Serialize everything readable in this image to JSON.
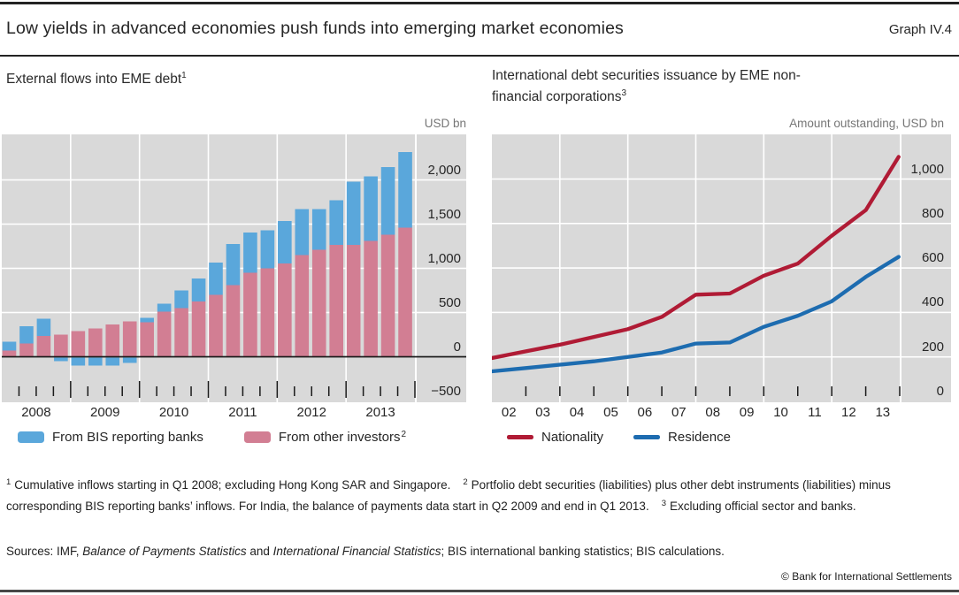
{
  "header": {
    "title": "Low yields in advanced economies push funds into emerging market economies",
    "graph_label": "Graph IV.4"
  },
  "colors": {
    "panel_background": "#d9d9d9",
    "gridline": "#ffffff",
    "zero_line": "#1a1a1a",
    "tick": "#1a1a1a",
    "bar_blue": "#5aa7db",
    "bar_pink": "#d27e93",
    "line_red": "#b01b35",
    "line_blue": "#1d6cb0"
  },
  "chart_data": [
    {
      "type": "bar",
      "stacked": true,
      "title": "External flows into EME debt",
      "title_footnote": "1",
      "unit_label": "USD bn",
      "categories": [
        "2008 Q1",
        "2008 Q2",
        "2008 Q3",
        "2008 Q4",
        "2009 Q1",
        "2009 Q2",
        "2009 Q3",
        "2009 Q4",
        "2010 Q1",
        "2010 Q2",
        "2010 Q3",
        "2010 Q4",
        "2011 Q1",
        "2011 Q2",
        "2011 Q3",
        "2011 Q4",
        "2012 Q1",
        "2012 Q2",
        "2012 Q3",
        "2012 Q4",
        "2013 Q1",
        "2013 Q2",
        "2013 Q3",
        "2013 Q4"
      ],
      "x_year_labels": [
        "2008",
        "2009",
        "2010",
        "2011",
        "2012",
        "2013"
      ],
      "series": [
        {
          "name": "From other investors",
          "name_footnote": "2",
          "color": "#d27e93",
          "values": [
            70,
            150,
            235,
            250,
            290,
            320,
            365,
            400,
            390,
            510,
            550,
            625,
            700,
            810,
            950,
            1000,
            1055,
            1150,
            1210,
            1265,
            1265,
            1310,
            1380,
            1460
          ]
        },
        {
          "name": "From BIS reporting banks",
          "name_footnote": "",
          "color": "#5aa7db",
          "values": [
            100,
            195,
            195,
            -40,
            -90,
            -90,
            -90,
            -60,
            50,
            90,
            200,
            260,
            365,
            465,
            455,
            430,
            480,
            520,
            460,
            505,
            715,
            730,
            765,
            855
          ]
        }
      ],
      "legend_order": [
        1,
        0
      ],
      "ylim": [
        -500,
        2500
      ],
      "grid_values": [
        500,
        1000,
        1500,
        2000
      ],
      "zero_line": true,
      "yticks": [
        {
          "value": 2000,
          "label": "2,000"
        },
        {
          "value": 1500,
          "label": "1,500"
        },
        {
          "value": 1000,
          "label": "1,000"
        },
        {
          "value": 500,
          "label": "500"
        },
        {
          "value": 0,
          "label": "0"
        },
        {
          "value": -500,
          "label": "−500"
        }
      ]
    },
    {
      "type": "line",
      "title": "International debt securities issuance by EME non-financial corporations",
      "title_footnote": "3",
      "unit_label": "Amount outstanding, USD bn",
      "x": [
        2002,
        2003,
        2004,
        2005,
        2006,
        2007,
        2008,
        2009,
        2010,
        2011,
        2012,
        2013,
        2013.97
      ],
      "x_year_labels": [
        "02",
        "03",
        "04",
        "05",
        "06",
        "07",
        "08",
        "09",
        "10",
        "11",
        "12",
        "13"
      ],
      "series": [
        {
          "name": "Nationality",
          "color": "#b01b35",
          "values": [
            195,
            225,
            255,
            290,
            325,
            380,
            480,
            485,
            565,
            620,
            745,
            860,
            1100
          ]
        },
        {
          "name": "Residence",
          "color": "#1d6cb0",
          "values": [
            135,
            150,
            165,
            180,
            200,
            220,
            260,
            265,
            335,
            385,
            450,
            560,
            650
          ]
        }
      ],
      "legend_order": [
        0,
        1
      ],
      "ylim": [
        0,
        1200
      ],
      "grid_values": [
        200,
        400,
        600,
        800,
        1000
      ],
      "zero_line": false,
      "yticks": [
        {
          "value": 1000,
          "label": "1,000"
        },
        {
          "value": 800,
          "label": "800"
        },
        {
          "value": 600,
          "label": "600"
        },
        {
          "value": 400,
          "label": "400"
        },
        {
          "value": 200,
          "label": "200"
        },
        {
          "value": 0,
          "label": "0"
        }
      ]
    }
  ],
  "footnotes": [
    {
      "marker": "1",
      "text": "Cumulative inflows starting in Q1 2008; excluding Hong Kong SAR and Singapore."
    },
    {
      "marker": "2",
      "text": "Portfolio debt securities (liabilities) plus other debt instruments (liabilities) minus corresponding BIS reporting banks’ inflows. For India, the balance of payments data start in Q2 2009 and end in Q1 2013."
    },
    {
      "marker": "3",
      "text": "Excluding official sector and banks."
    }
  ],
  "sources": {
    "segments": [
      {
        "text": "Sources: IMF, ",
        "italic": false
      },
      {
        "text": "Balance of Payments Statistics",
        "italic": true
      },
      {
        "text": " and ",
        "italic": false
      },
      {
        "text": "International Financial Statistics",
        "italic": true
      },
      {
        "text": "; BIS international banking statistics; BIS calculations.",
        "italic": false
      }
    ]
  },
  "copyright": "© Bank for International Settlements"
}
